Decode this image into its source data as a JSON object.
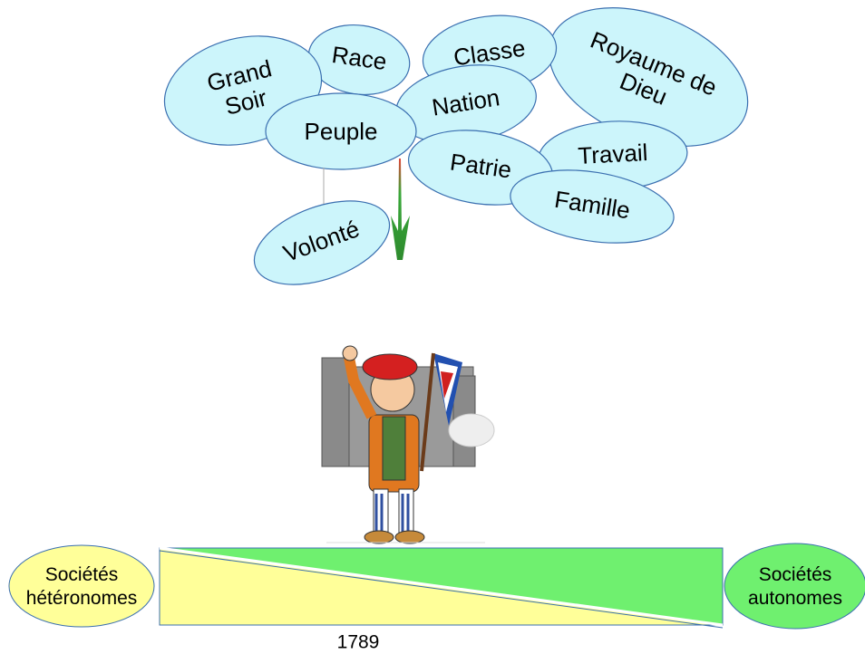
{
  "bubbles": [
    {
      "lines": [
        "Royaume de",
        "Dieu"
      ]
    },
    {
      "lines": [
        "Classe"
      ]
    },
    {
      "lines": [
        "Race"
      ]
    },
    {
      "lines": [
        "Grand",
        "Soir"
      ]
    },
    {
      "lines": [
        "Nation"
      ]
    },
    {
      "lines": [
        "Peuple"
      ]
    },
    {
      "lines": [
        "Patrie"
      ]
    },
    {
      "lines": [
        "Travail"
      ]
    },
    {
      "lines": [
        "Famille"
      ]
    },
    {
      "lines": [
        "Volonté"
      ]
    }
  ],
  "scale": {
    "left": {
      "lines": [
        "Sociétés",
        "hétéronomes"
      ]
    },
    "right": {
      "lines": [
        "Sociétés",
        "autonomes"
      ]
    },
    "year": "1789"
  }
}
